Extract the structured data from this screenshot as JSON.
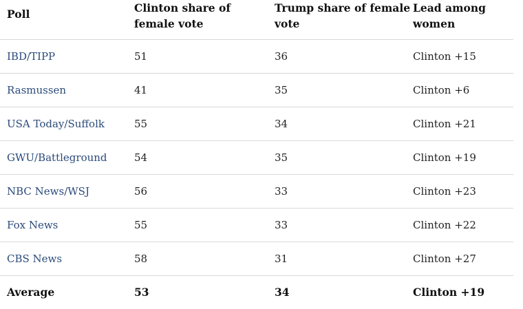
{
  "headers": {
    "poll": "Poll",
    "clinton": "Clinton share of female vote",
    "trump": "Trump share of female vote",
    "lead": "Lead among women"
  },
  "rows": [
    {
      "poll": "IBD/TIPP",
      "clinton": "51",
      "trump": "36",
      "lead": "Clinton +15"
    },
    {
      "poll": "Rasmussen",
      "clinton": "41",
      "trump": "35",
      "lead": "Clinton +6"
    },
    {
      "poll": "USA Today/Suffolk",
      "clinton": "55",
      "trump": "34",
      "lead": "Clinton +21"
    },
    {
      "poll": "GWU/Battleground",
      "clinton": "54",
      "trump": "35",
      "lead": "Clinton +19"
    },
    {
      "poll": "NBC News/WSJ",
      "clinton": "56",
      "trump": "33",
      "lead": "Clinton +23"
    },
    {
      "poll": "Fox News",
      "clinton": "55",
      "trump": "33",
      "lead": "Clinton +22"
    },
    {
      "poll": "CBS News",
      "clinton": "58",
      "trump": "31",
      "lead": "Clinton +27"
    }
  ],
  "average": {
    "label": "Average",
    "clinton": "53",
    "trump": "34",
    "lead": "Clinton +19"
  },
  "colors": {
    "link": "#2b4a7a",
    "divider": "#d9d9d9",
    "text": "#1e1e1e"
  }
}
